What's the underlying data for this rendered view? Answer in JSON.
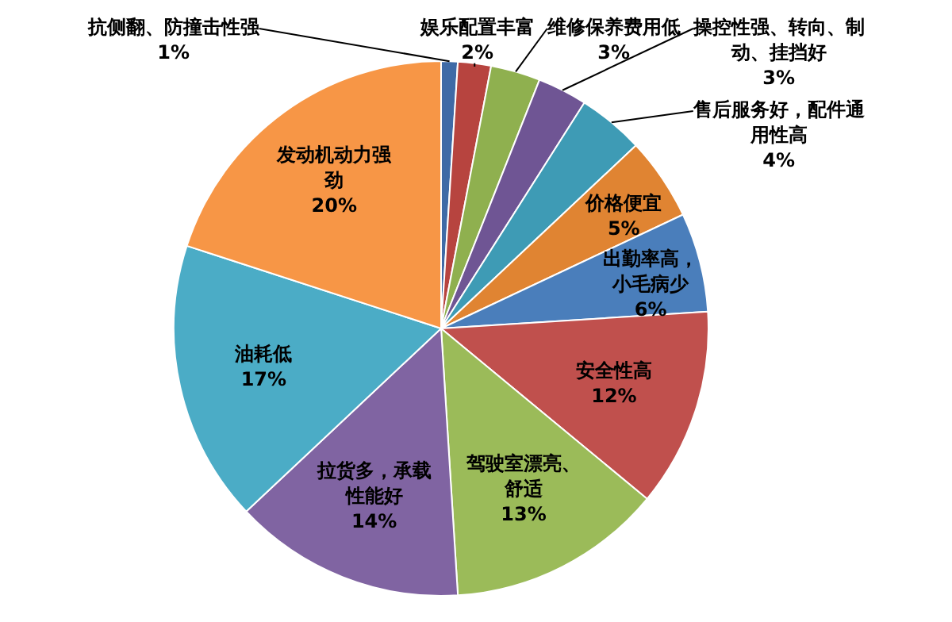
{
  "chart_data": {
    "type": "pie",
    "categories": [
      "抗侧翻、防撞击性强",
      "娱乐配置丰富",
      "维修保养费用低",
      "操控性强、转向、制动、挂挡好",
      "售后服务好，配件通用性高",
      "价格便宜",
      "出勤率高，小毛病少",
      "安全性高",
      "驾驶室漂亮、舒适",
      "拉货多，承载性能好",
      "油耗低",
      "发动机动力强劲"
    ],
    "values": [
      1,
      2,
      3,
      3,
      4,
      5,
      6,
      12,
      13,
      14,
      17,
      20
    ],
    "colors": [
      "#3f6aa6",
      "#b7443f",
      "#8fb04f",
      "#6f5594",
      "#3e9bb5",
      "#e08432",
      "#4a7ebb",
      "#c0504d",
      "#9bbb59",
      "#8064a2",
      "#4bacc6",
      "#f79646"
    ],
    "value_labels": [
      "1%",
      "2%",
      "3%",
      "3%",
      "4%",
      "5%",
      "6%",
      "12%",
      "13%",
      "14%",
      "17%",
      "20%"
    ],
    "legend": false
  }
}
